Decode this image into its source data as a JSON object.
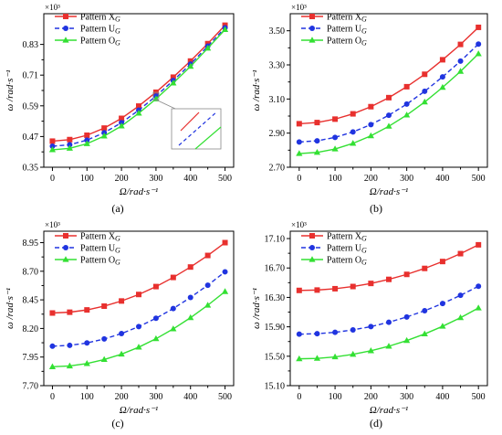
{
  "chart_data": [
    {
      "type": "line",
      "panel_label": "(a)",
      "multiplier": "×10³",
      "xlabel": "Ω/rad·s⁻¹",
      "ylabel": "ω /rad·s⁻¹",
      "xlim": [
        -25,
        525
      ],
      "ylim": [
        0.35,
        0.95
      ],
      "xticks": [
        "0",
        "100",
        "200",
        "300",
        "400",
        "500"
      ],
      "yticks": [
        "0.35",
        "0.47",
        "0.59",
        "0.71",
        "0.83"
      ],
      "inset_zoom": true,
      "x": [
        0,
        50,
        100,
        150,
        200,
        250,
        300,
        350,
        400,
        450,
        500
      ],
      "series": [
        {
          "name": "Pattern X",
          "name_sub": "G",
          "color": "#e8302e",
          "marker": "square",
          "dash": "solid",
          "values": [
            0.452,
            0.458,
            0.475,
            0.503,
            0.541,
            0.589,
            0.643,
            0.702,
            0.765,
            0.833,
            0.905
          ]
        },
        {
          "name": "Pattern U",
          "name_sub": "G",
          "color": "#2034e0",
          "marker": "circle",
          "dash": "dashed",
          "values": [
            0.432,
            0.438,
            0.456,
            0.485,
            0.524,
            0.573,
            0.628,
            0.689,
            0.753,
            0.823,
            0.895
          ]
        },
        {
          "name": "Pattern O",
          "name_sub": "G",
          "color": "#33e033",
          "marker": "triangle",
          "dash": "solid",
          "values": [
            0.418,
            0.424,
            0.442,
            0.472,
            0.511,
            0.561,
            0.617,
            0.679,
            0.744,
            0.815,
            0.888
          ]
        }
      ]
    },
    {
      "type": "line",
      "panel_label": "(b)",
      "multiplier": "×10³",
      "xlabel": "Ω/rad·s⁻¹",
      "ylabel": "ω /rad·s⁻¹",
      "xlim": [
        -25,
        525
      ],
      "ylim": [
        2.7,
        3.6
      ],
      "xticks": [
        "0",
        "100",
        "200",
        "300",
        "400",
        "500"
      ],
      "yticks": [
        "2.70",
        "2.90",
        "3.10",
        "3.30",
        "3.50"
      ],
      "x": [
        0,
        50,
        100,
        150,
        200,
        250,
        300,
        350,
        400,
        450,
        500
      ],
      "series": [
        {
          "name": "Pattern X",
          "name_sub": "G",
          "color": "#e8302e",
          "marker": "square",
          "dash": "solid",
          "values": [
            2.955,
            2.962,
            2.982,
            3.013,
            3.055,
            3.108,
            3.172,
            3.245,
            3.33,
            3.42,
            3.52
          ]
        },
        {
          "name": "Pattern U",
          "name_sub": "G",
          "color": "#2034e0",
          "marker": "circle",
          "dash": "dashed",
          "values": [
            2.848,
            2.855,
            2.875,
            2.907,
            2.95,
            3.005,
            3.07,
            3.145,
            3.23,
            3.322,
            3.422
          ]
        },
        {
          "name": "Pattern O",
          "name_sub": "G",
          "color": "#33e033",
          "marker": "triangle",
          "dash": "solid",
          "values": [
            2.78,
            2.787,
            2.807,
            2.84,
            2.884,
            2.94,
            3.006,
            3.082,
            3.168,
            3.262,
            3.365
          ]
        }
      ]
    },
    {
      "type": "line",
      "panel_label": "(c)",
      "multiplier": "×10³",
      "xlabel": "Ω/rad·s⁻¹",
      "ylabel": "ω /rad·s⁻¹",
      "xlim": [
        -25,
        525
      ],
      "ylim": [
        7.7,
        9.05
      ],
      "xticks": [
        "0",
        "100",
        "200",
        "300",
        "400",
        "500"
      ],
      "yticks": [
        "7.70",
        "7.95",
        "8.20",
        "8.45",
        "8.70",
        "8.95"
      ],
      "x": [
        0,
        50,
        100,
        150,
        200,
        250,
        300,
        350,
        400,
        450,
        500
      ],
      "series": [
        {
          "name": "Pattern X",
          "name_sub": "G",
          "color": "#e8302e",
          "marker": "square",
          "dash": "solid",
          "values": [
            8.335,
            8.342,
            8.362,
            8.395,
            8.44,
            8.497,
            8.566,
            8.646,
            8.737,
            8.838,
            8.95
          ]
        },
        {
          "name": "Pattern U",
          "name_sub": "G",
          "color": "#2034e0",
          "marker": "circle",
          "dash": "dashed",
          "values": [
            8.045,
            8.052,
            8.073,
            8.108,
            8.155,
            8.216,
            8.289,
            8.374,
            8.471,
            8.578,
            8.695
          ]
        },
        {
          "name": "Pattern O",
          "name_sub": "G",
          "color": "#33e033",
          "marker": "triangle",
          "dash": "solid",
          "values": [
            7.865,
            7.872,
            7.893,
            7.928,
            7.975,
            8.036,
            8.11,
            8.196,
            8.294,
            8.403,
            8.522
          ]
        }
      ]
    },
    {
      "type": "line",
      "panel_label": "(d)",
      "multiplier": "×10³",
      "xlabel": "Ω/rad·s⁻¹",
      "ylabel": "ω /rad·s⁻¹",
      "xlim": [
        -25,
        525
      ],
      "ylim": [
        15.1,
        17.2
      ],
      "xticks": [
        "0",
        "100",
        "200",
        "300",
        "400",
        "500"
      ],
      "yticks": [
        "15.10",
        "15.50",
        "15.90",
        "16.30",
        "16.70",
        "17.10"
      ],
      "x": [
        0,
        50,
        100,
        150,
        200,
        250,
        300,
        350,
        400,
        450,
        500
      ],
      "series": [
        {
          "name": "Pattern X",
          "name_sub": "G",
          "color": "#e8302e",
          "marker": "square",
          "dash": "solid",
          "values": [
            16.395,
            16.4,
            16.418,
            16.448,
            16.49,
            16.545,
            16.613,
            16.694,
            16.788,
            16.895,
            17.015
          ]
        },
        {
          "name": "Pattern U",
          "name_sub": "G",
          "color": "#2034e0",
          "marker": "circle",
          "dash": "dashed",
          "values": [
            15.8,
            15.806,
            15.825,
            15.858,
            15.903,
            15.962,
            16.034,
            16.119,
            16.217,
            16.328,
            16.452
          ]
        },
        {
          "name": "Pattern O",
          "name_sub": "G",
          "color": "#33e033",
          "marker": "triangle",
          "dash": "solid",
          "values": [
            15.465,
            15.471,
            15.491,
            15.526,
            15.574,
            15.636,
            15.713,
            15.803,
            15.907,
            16.024,
            16.156
          ]
        }
      ]
    }
  ]
}
